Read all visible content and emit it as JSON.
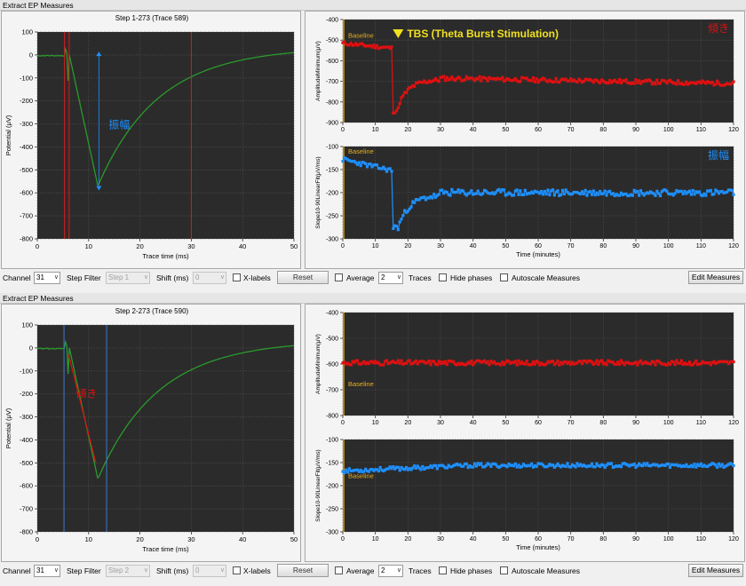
{
  "windows": [
    {
      "title": "Extract EP Measures",
      "trace": {
        "title": "Step 1-273 (Trace 589)",
        "xlabel": "Trace time (ms)",
        "ylabel": "Potential (μV)",
        "yticks": [
          "100",
          "0",
          "-100",
          "-200",
          "-300",
          "-400",
          "-500",
          "-600",
          "-700",
          "-800"
        ],
        "xticks": [
          "0",
          "10",
          "20",
          "30",
          "40",
          "50"
        ],
        "annotation": "振幅",
        "annotation_color": "#1e90ff",
        "cursor_color": "#d02020"
      },
      "amp_chart": {
        "ylabel": "AmplitudeMinimum(μV)",
        "yticks": [
          "-400",
          "-500",
          "-600",
          "-700",
          "-800",
          "-900"
        ],
        "xticks": [
          "0",
          "10",
          "20",
          "30",
          "40",
          "50",
          "60",
          "70",
          "80",
          "90",
          "100",
          "110",
          "120"
        ],
        "baseline": "Baseline",
        "tbs": "TBS (Theta Burst Stimulation)",
        "corner": "傾き",
        "color": "#e01010"
      },
      "slope_chart": {
        "ylabel": "Slope10-90LinearFit(μV/ms)",
        "yticks": [
          "-100",
          "-150",
          "-200",
          "-250",
          "-300"
        ],
        "xticks": [
          "0",
          "10",
          "20",
          "30",
          "40",
          "50",
          "60",
          "70",
          "80",
          "90",
          "100",
          "110",
          "120"
        ],
        "xlabel": "Time (minutes)",
        "baseline": "Baseline",
        "corner": "振幅",
        "color": "#1e90ff"
      },
      "controls": {
        "channel_label": "Channel",
        "channel_value": "31",
        "step_filter_label": "Step Filter",
        "step_value": "Step 1",
        "shift_label": "Shift (ms)",
        "shift_value": "0",
        "xlabels": "X-labels",
        "reset": "Reset",
        "average": "Average",
        "average_value": "2",
        "traces": "Traces",
        "hide_phases": "Hide phases",
        "autoscale": "Autoscale Measures",
        "edit_measures": "Edit Measures"
      }
    },
    {
      "title": "Extract EP Measures",
      "trace": {
        "title": "Step 2-273 (Trace 590)",
        "xlabel": "Trace time (ms)",
        "ylabel": "Potential (μV)",
        "yticks": [
          "100",
          "0",
          "-100",
          "-200",
          "-300",
          "-400",
          "-500",
          "-600",
          "-700",
          "-800"
        ],
        "xticks": [
          "0",
          "10",
          "20",
          "30",
          "40",
          "50"
        ],
        "annotation": "傾き",
        "annotation_color": "#e01010",
        "cursor_color": "#3a7ad0"
      },
      "amp_chart": {
        "ylabel": "AmplitudeMinimum(μV)",
        "yticks": [
          "-400",
          "-500",
          "-600",
          "-700",
          "-800"
        ],
        "xticks": [
          "0",
          "10",
          "20",
          "30",
          "40",
          "50",
          "60",
          "70",
          "80",
          "90",
          "100",
          "110",
          "120"
        ],
        "baseline": "Baseline",
        "tbs": "",
        "corner": "",
        "color": "#e01010"
      },
      "slope_chart": {
        "ylabel": "Slope10-90LinearFit(μV/ms)",
        "yticks": [
          "-100",
          "-150",
          "-200",
          "-250",
          "-300"
        ],
        "xticks": [
          "0",
          "10",
          "20",
          "30",
          "40",
          "50",
          "60",
          "70",
          "80",
          "90",
          "100",
          "110",
          "120"
        ],
        "xlabel": "Time (minutes)",
        "baseline": "Baseline",
        "corner": "",
        "color": "#1e90ff"
      },
      "controls": {
        "channel_label": "Channel",
        "channel_value": "31",
        "step_filter_label": "Step Filter",
        "step_value": "Step 2",
        "shift_label": "Shift (ms)",
        "shift_value": "0",
        "xlabels": "X-labels",
        "reset": "Reset",
        "average": "Average",
        "average_value": "2",
        "traces": "Traces",
        "hide_phases": "Hide phases",
        "autoscale": "Autoscale Measures",
        "edit_measures": "Edit Measures"
      }
    }
  ]
}
